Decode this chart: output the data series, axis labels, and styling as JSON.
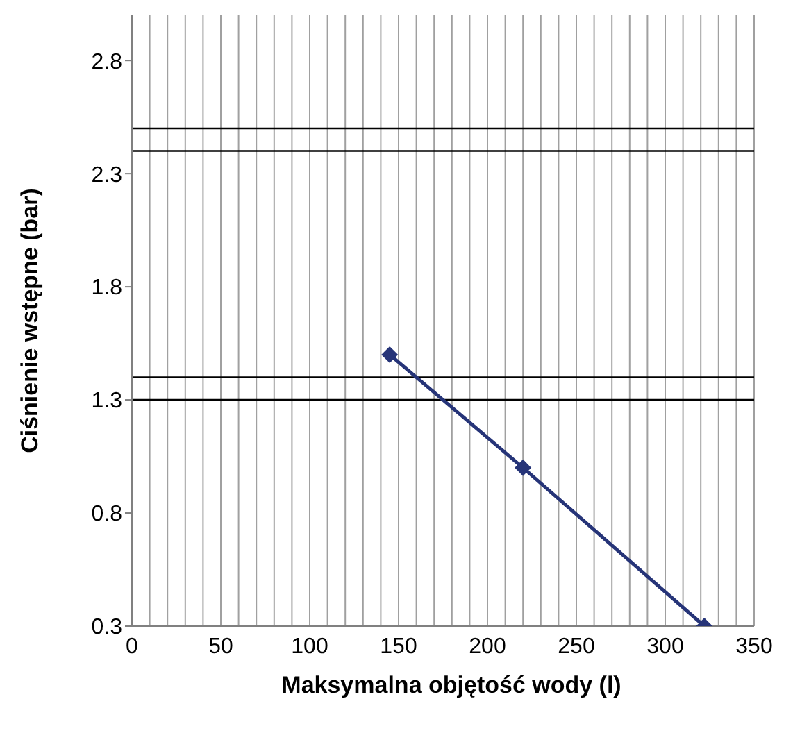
{
  "chart_data": {
    "type": "line",
    "xlabel": "Maksymalna objętość wody (l)",
    "ylabel": "Ciśnienie wstępne (bar)",
    "x": [
      145,
      220,
      322
    ],
    "series": [
      {
        "color": "#263478",
        "values": [
          1.5,
          1.0,
          0.3
        ]
      }
    ],
    "xlim": [
      0,
      350
    ],
    "xticks": [
      0,
      {
        "value": 10,
        "label": null
      },
      {
        "value": 20,
        "label": null
      },
      {
        "value": 30,
        "label": null
      },
      {
        "value": 40,
        "label": null
      },
      50,
      {
        "value": 60,
        "label": null
      },
      {
        "value": 70,
        "label": null
      },
      {
        "value": 80,
        "label": null
      },
      {
        "value": 90,
        "label": null
      },
      100,
      {
        "value": 110,
        "label": null
      },
      {
        "value": 120,
        "label": null
      },
      {
        "value": 130,
        "label": null
      },
      {
        "value": 140,
        "label": null
      },
      150,
      {
        "value": 160,
        "label": null
      },
      {
        "value": 170,
        "label": null
      },
      {
        "value": 180,
        "label": null
      },
      {
        "value": 190,
        "label": null
      },
      200,
      {
        "value": 210,
        "label": null
      },
      {
        "value": 220,
        "label": null
      },
      {
        "value": 230,
        "label": null
      },
      {
        "value": 240,
        "label": null
      },
      250,
      {
        "value": 260,
        "label": null
      },
      {
        "value": 270,
        "label": null
      },
      {
        "value": 280,
        "label": null
      },
      {
        "value": 290,
        "label": null
      },
      300,
      {
        "value": 310,
        "label": null
      },
      {
        "value": 320,
        "label": null
      },
      {
        "value": 330,
        "label": null
      },
      {
        "value": 340,
        "label": null
      },
      350
    ],
    "ylim": [
      0.3,
      3.0
    ],
    "yticks": [
      0.3,
      0.8,
      1.3,
      1.8,
      2.3,
      2.8
    ],
    "ref_lines": [
      {
        "axis": "y",
        "value": 2.5,
        "color": "#000000"
      },
      {
        "axis": "y",
        "value": 2.4,
        "color": "#000000"
      },
      {
        "axis": "y",
        "value": 1.4,
        "color": "#000000"
      },
      {
        "axis": "y",
        "value": 1.3,
        "color": "#000000"
      }
    ],
    "grid": "x",
    "marker": "diamond",
    "line_style": "solid",
    "legend": false
  }
}
